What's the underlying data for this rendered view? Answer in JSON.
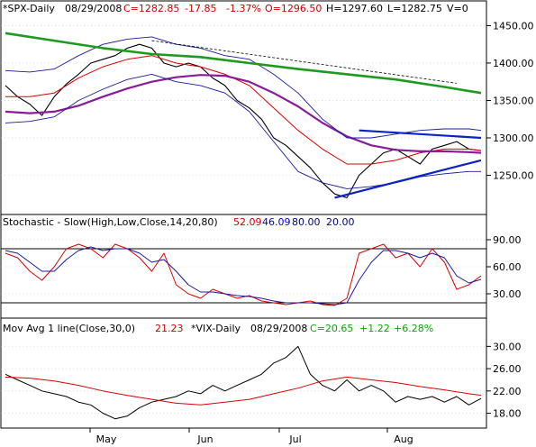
{
  "chart_data": [
    {
      "type": "line",
      "panel": "price",
      "header": {
        "symbol": "*SPX-Daily",
        "date": "08/29/2008",
        "close": "C=1282.85",
        "change": "-17.85",
        "change_pct": "-1.37%",
        "open": "O=1296.50",
        "high": "H=1297.60",
        "low": "L=1282.75",
        "volume": "V=0"
      },
      "ylim": [
        1200,
        1465
      ],
      "y_ticks": [
        1250,
        1300,
        1350,
        1400,
        1450
      ],
      "y_tick_labels": [
        "1250.00",
        "1300.00",
        "1350.00",
        "1400.00",
        "1450.00"
      ],
      "x_labels": [
        "May",
        "Jun",
        "Jul",
        "Aug"
      ],
      "series": [
        {
          "x": [
            0,
            5,
            10,
            15,
            20,
            25,
            30,
            35,
            40,
            45,
            50,
            55,
            60,
            65,
            70,
            75,
            80,
            85,
            90,
            95,
            100,
            105,
            110,
            115,
            120,
            125,
            130,
            135,
            140,
            145,
            150,
            155,
            160,
            165,
            170,
            175,
            180,
            185,
            190,
            195
          ],
          "values": [
            1370,
            1355,
            1345,
            1330,
            1355,
            1372,
            1385,
            1400,
            1405,
            1410,
            1420,
            1425,
            1420,
            1400,
            1395,
            1400,
            1395,
            1380,
            1370,
            1350,
            1340,
            1325,
            1300,
            1290,
            1275,
            1260,
            1240,
            1225,
            1220,
            1250,
            1265,
            1280,
            1285,
            1275,
            1265,
            1285,
            1290,
            1295,
            1285,
            1283
          ]
        },
        {
          "x": [
            0,
            10,
            20,
            30,
            40,
            50,
            60,
            70,
            80,
            90,
            100,
            110,
            120,
            130,
            140,
            150,
            160,
            170,
            180,
            190,
            195
          ],
          "values": [
            1355,
            1355,
            1360,
            1380,
            1395,
            1405,
            1410,
            1400,
            1395,
            1385,
            1370,
            1340,
            1310,
            1285,
            1265,
            1265,
            1270,
            1280,
            1285,
            1285,
            1283
          ]
        },
        {
          "x": [
            0,
            10,
            20,
            30,
            40,
            50,
            60,
            70,
            80,
            90,
            100,
            110,
            120,
            130,
            140,
            150,
            160,
            170,
            180,
            190,
            195
          ],
          "values": [
            1335,
            1333,
            1335,
            1343,
            1355,
            1366,
            1375,
            1381,
            1384,
            1383,
            1375,
            1360,
            1342,
            1320,
            1302,
            1290,
            1284,
            1282,
            1282,
            1281,
            1280
          ]
        },
        {
          "x": [
            0,
            10,
            20,
            30,
            40,
            50,
            60,
            70,
            80,
            90,
            100,
            110,
            120,
            130,
            140,
            150,
            160,
            170,
            180,
            190,
            195
          ],
          "values": [
            1390,
            1388,
            1392,
            1410,
            1425,
            1432,
            1435,
            1425,
            1420,
            1410,
            1405,
            1385,
            1360,
            1325,
            1300,
            1300,
            1305,
            1310,
            1312,
            1312,
            1310
          ]
        },
        {
          "x": [
            0,
            10,
            20,
            30,
            40,
            50,
            60,
            70,
            80,
            90,
            100,
            110,
            120,
            130,
            140,
            150,
            160,
            170,
            180,
            190,
            195
          ],
          "values": [
            1320,
            1322,
            1328,
            1350,
            1365,
            1378,
            1385,
            1375,
            1370,
            1360,
            1335,
            1295,
            1255,
            1240,
            1232,
            1235,
            1240,
            1248,
            1252,
            1255,
            1255
          ]
        },
        {
          "x": [
            0,
            20,
            40,
            60,
            80,
            100,
            120,
            140,
            160,
            180,
            195
          ],
          "values": [
            1440,
            1430,
            1420,
            1412,
            1408,
            1400,
            1392,
            1385,
            1378,
            1368,
            1360
          ]
        }
      ],
      "trendlines": [
        {
          "x": [
            135,
            195
          ],
          "values": [
            1220,
            1270
          ]
        },
        {
          "x": [
            145,
            195
          ],
          "values": [
            1310,
            1300
          ]
        },
        {
          "x": [
            60,
            185
          ],
          "values": [
            1430,
            1373
          ]
        }
      ]
    },
    {
      "type": "line",
      "panel": "stochastic",
      "header": {
        "title": "Stochastic - Slow(High,Low,Close,14,20,80)",
        "value1": "52.09",
        "value2": "46.09",
        "value3": "80.00",
        "value4": "20.00"
      },
      "ylim": [
        5,
        100
      ],
      "y_ticks": [
        30,
        60,
        90
      ],
      "y_tick_labels": [
        "30.00",
        "60.00",
        "90.00"
      ],
      "reference_levels": [
        20,
        80
      ],
      "series": [
        {
          "x": [
            0,
            5,
            10,
            15,
            20,
            25,
            30,
            35,
            40,
            45,
            50,
            55,
            60,
            65,
            70,
            75,
            80,
            85,
            90,
            95,
            100,
            105,
            110,
            115,
            120,
            125,
            130,
            135,
            140,
            145,
            150,
            155,
            160,
            165,
            170,
            175,
            180,
            185,
            190,
            195
          ],
          "values": [
            75,
            70,
            55,
            45,
            60,
            80,
            85,
            80,
            70,
            85,
            80,
            70,
            55,
            75,
            40,
            30,
            25,
            35,
            30,
            25,
            28,
            22,
            20,
            18,
            20,
            22,
            18,
            17,
            25,
            75,
            80,
            85,
            70,
            75,
            60,
            80,
            65,
            35,
            40,
            50
          ]
        },
        {
          "x": [
            0,
            5,
            10,
            15,
            20,
            25,
            30,
            35,
            40,
            45,
            50,
            55,
            60,
            65,
            70,
            75,
            80,
            85,
            90,
            95,
            100,
            105,
            110,
            115,
            120,
            125,
            130,
            135,
            140,
            145,
            150,
            155,
            160,
            165,
            170,
            175,
            180,
            185,
            190,
            195
          ],
          "values": [
            78,
            75,
            65,
            55,
            55,
            68,
            78,
            82,
            78,
            80,
            80,
            75,
            65,
            68,
            55,
            40,
            32,
            32,
            30,
            28,
            27,
            25,
            22,
            20,
            20,
            20,
            19,
            18,
            20,
            45,
            65,
            78,
            78,
            75,
            70,
            75,
            70,
            50,
            42,
            46
          ]
        }
      ]
    },
    {
      "type": "line",
      "panel": "vix",
      "header": {
        "title": "Mov Avg 1 line(Close,30,0)",
        "ma_value": "21.23",
        "symbol": "*VIX-Daily",
        "date": "08/29/2008",
        "close": "C=20.65",
        "change": "+1.22",
        "change_pct": "+6.28%"
      },
      "ylim": [
        15.5,
        32
      ],
      "y_ticks": [
        18,
        22,
        26,
        30
      ],
      "y_tick_labels": [
        "18.00",
        "22.00",
        "26.00",
        "30.00"
      ],
      "series": [
        {
          "x": [
            0,
            5,
            10,
            15,
            20,
            25,
            30,
            35,
            40,
            45,
            50,
            55,
            60,
            65,
            70,
            75,
            80,
            85,
            90,
            95,
            100,
            105,
            110,
            115,
            120,
            125,
            130,
            135,
            140,
            145,
            150,
            155,
            160,
            165,
            170,
            175,
            180,
            185,
            190,
            195
          ],
          "values": [
            25,
            24,
            23,
            22,
            21.5,
            21,
            20,
            19.5,
            18,
            17,
            17.5,
            19,
            20,
            20.5,
            21,
            22,
            21.5,
            23,
            22,
            23,
            24,
            25,
            27,
            28,
            30,
            25,
            23,
            22,
            24,
            22,
            23,
            22,
            20,
            21,
            20.5,
            21,
            20,
            21,
            19.5,
            20.65
          ]
        },
        {
          "x": [
            0,
            10,
            20,
            30,
            40,
            50,
            60,
            70,
            80,
            90,
            100,
            110,
            120,
            130,
            140,
            150,
            160,
            170,
            180,
            190,
            195
          ],
          "values": [
            24.5,
            24.3,
            23.8,
            23,
            22,
            21.2,
            20.5,
            19.8,
            19.5,
            20,
            20.5,
            21.5,
            22.5,
            23.8,
            24.5,
            24,
            23.5,
            22.8,
            22.2,
            21.5,
            21.23
          ]
        }
      ]
    }
  ]
}
